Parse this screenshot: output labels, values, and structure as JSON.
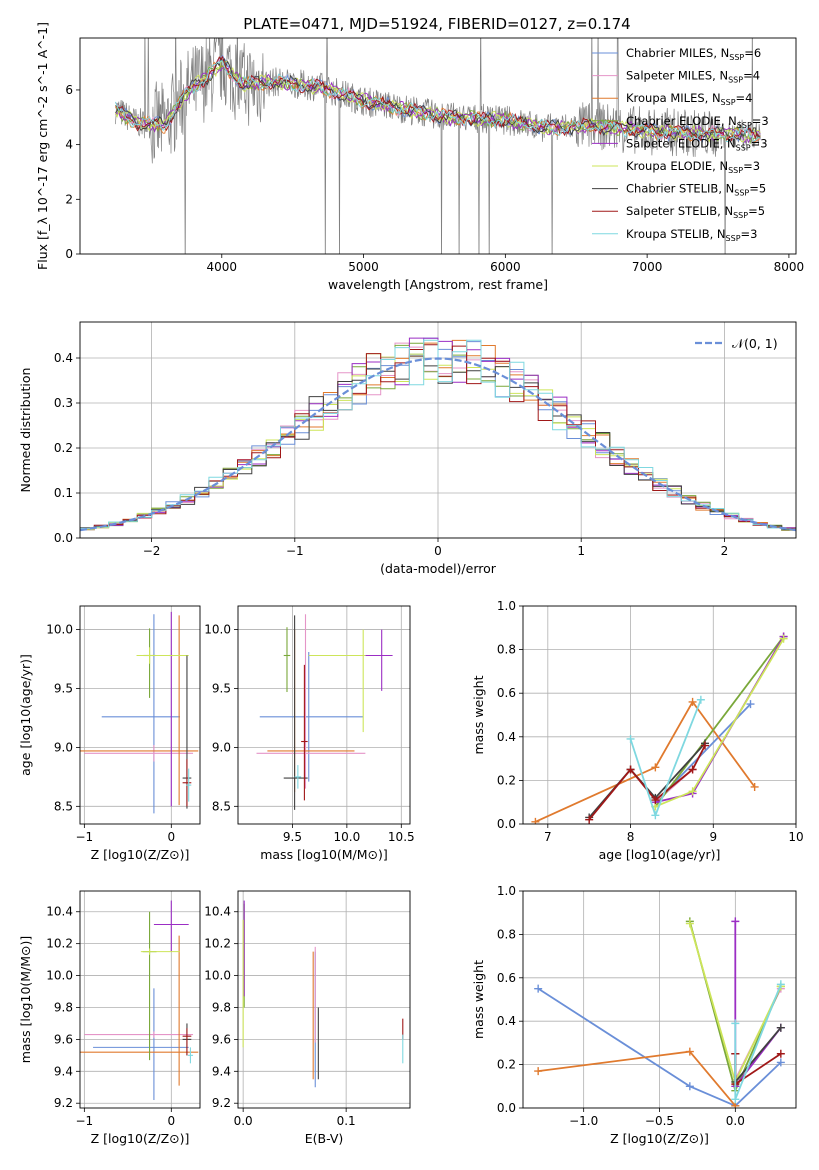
{
  "figure": {
    "title": "PLATE=0471, MJD=51924, FIBERID=0127, z=0.174"
  },
  "models": [
    {
      "name": "Chabrier MILES",
      "nssp": "6",
      "color": "#6a8fd8"
    },
    {
      "name": "Salpeter MILES",
      "nssp": "4",
      "color": "#e595c8"
    },
    {
      "name": "Kroupa MILES",
      "nssp": "4",
      "color": "#e07a2e"
    },
    {
      "name": "Chabrier ELODIE",
      "nssp": "3",
      "color": "#7aa83a"
    },
    {
      "name": "Salpeter ELODIE",
      "nssp": "3",
      "color": "#9b2ec4"
    },
    {
      "name": "Kroupa ELODIE",
      "nssp": "3",
      "color": "#cde55a"
    },
    {
      "name": "Chabrier STELIB",
      "nssp": "5",
      "color": "#404040"
    },
    {
      "name": "Salpeter STELIB",
      "nssp": "5",
      "color": "#a01818"
    },
    {
      "name": "Kroupa STELIB",
      "nssp": "3",
      "color": "#7fd8e0"
    }
  ],
  "chart_data": [
    {
      "id": "spectrum",
      "type": "line",
      "title": "PLATE=0471, MJD=51924, FIBERID=0127, z=0.174",
      "xlabel": "wavelength [Angstrom, rest frame]",
      "ylabel": "Flux [f_λ 10^-17 erg cm^-2 s^-1 A^-1]",
      "xlim": [
        3000,
        8050
      ],
      "ylim": [
        0,
        7.9
      ],
      "xticks": [
        "4000",
        "5000",
        "6000",
        "7000",
        "8000"
      ],
      "yticks": [
        "0",
        "2",
        "4",
        "6"
      ],
      "grid": false,
      "legend": "top-right",
      "observed_color": "#808080",
      "model_continuum": [
        {
          "x": 3250,
          "y": 5.3
        },
        {
          "x": 3400,
          "y": 4.8
        },
        {
          "x": 3600,
          "y": 4.7
        },
        {
          "x": 3750,
          "y": 5.9
        },
        {
          "x": 3900,
          "y": 6.5
        },
        {
          "x": 4000,
          "y": 7.0
        },
        {
          "x": 4150,
          "y": 6.2
        },
        {
          "x": 4400,
          "y": 6.3
        },
        {
          "x": 4700,
          "y": 6.1
        },
        {
          "x": 5000,
          "y": 5.6
        },
        {
          "x": 5300,
          "y": 5.3
        },
        {
          "x": 5600,
          "y": 5.0
        },
        {
          "x": 6000,
          "y": 4.9
        },
        {
          "x": 6300,
          "y": 4.6
        },
        {
          "x": 6600,
          "y": 4.7
        },
        {
          "x": 7000,
          "y": 4.5
        },
        {
          "x": 7400,
          "y": 4.4
        },
        {
          "x": 7800,
          "y": 4.35
        }
      ]
    },
    {
      "id": "residual_histogram",
      "type": "line",
      "xlabel": "(data-model)/error",
      "ylabel": "Normed distribution",
      "xlim": [
        -2.5,
        2.5
      ],
      "ylim": [
        0,
        0.48
      ],
      "xticks": [
        "−2",
        "−1",
        "0",
        "1",
        "2"
      ],
      "yticks": [
        "0.0",
        "0.1",
        "0.2",
        "0.3",
        "0.4"
      ],
      "grid": true,
      "legend": "top-right",
      "reference_label": "𝒩(0, 1)",
      "reference_color": "#6a8fd8"
    },
    {
      "id": "age_vs_z",
      "type": "scatter",
      "xlabel": "Z [log10(Z/Z⊙)]",
      "ylabel": "age [log10(age/yr)]",
      "xlim": [
        -1.05,
        0.33
      ],
      "ylim": [
        8.35,
        10.2
      ],
      "xticks": [
        "−1",
        "0"
      ],
      "yticks": [
        "8.5",
        "9.0",
        "9.5",
        "10.0"
      ],
      "grid": true,
      "points": [
        {
          "model": 0,
          "x": -0.2,
          "xerr": [
            0.6,
            0.3
          ],
          "y": 9.26,
          "yerr": [
            0.82,
            0.87
          ]
        },
        {
          "model": 1,
          "x": -0.2,
          "xerr": [
            0.8,
            0.45
          ],
          "y": 8.95,
          "yerr": [
            0.07,
            0.07
          ]
        },
        {
          "model": 2,
          "x": 0.09,
          "xerr": [
            1.2,
            0.22
          ],
          "y": 8.97,
          "yerr": [
            0.46,
            1.15
          ]
        },
        {
          "model": 3,
          "x": -0.25,
          "xerr": [
            0.07,
            0.07
          ],
          "y": 9.78,
          "yerr": [
            0.36,
            0.23
          ]
        },
        {
          "model": 4,
          "x": 0.0,
          "xerr": [
            0.02,
            0.02
          ],
          "y": 9.78,
          "yerr": [
            1.28,
            0.37
          ]
        },
        {
          "model": 5,
          "x": -0.25,
          "xerr": [
            0.15,
            0.45
          ],
          "y": 9.78,
          "yerr": [
            0.07,
            0.07
          ]
        },
        {
          "model": 6,
          "x": 0.18,
          "xerr": [
            0.05,
            0.05
          ],
          "y": 8.74,
          "yerr": [
            0.26,
            1.04
          ]
        },
        {
          "model": 7,
          "x": 0.18,
          "xerr": [
            0.05,
            0.05
          ],
          "y": 8.7,
          "yerr": [
            0.2,
            0.2
          ]
        },
        {
          "model": 8,
          "x": 0.2,
          "xerr": [
            0.03,
            0.03
          ],
          "y": 8.68,
          "yerr": [
            0.14,
            0.14
          ]
        }
      ]
    },
    {
      "id": "age_vs_mass",
      "type": "scatter",
      "xlabel": "mass [log10(M/M⊙)]",
      "ylabel": "",
      "xlim": [
        9.0,
        10.58
      ],
      "ylim": [
        8.35,
        10.2
      ],
      "xticks": [
        "9.5",
        "10.0",
        "10.5"
      ],
      "yticks": [
        "8.5",
        "9.0",
        "9.5",
        "10.0"
      ],
      "grid": true,
      "points": [
        {
          "model": 0,
          "x": 9.65,
          "xerr": [
            0.45,
            0.5
          ],
          "y": 9.26,
          "yerr": [
            0.55,
            0.55
          ]
        },
        {
          "model": 1,
          "x": 9.62,
          "xerr": [
            0.45,
            0.55
          ],
          "y": 8.95,
          "yerr": [
            0.3,
            1.18
          ]
        },
        {
          "model": 2,
          "x": 9.52,
          "xerr": [
            0.25,
            0.55
          ],
          "y": 8.97,
          "yerr": [
            0.35,
            1.03
          ]
        },
        {
          "model": 3,
          "x": 9.45,
          "xerr": [
            0.03,
            0.03
          ],
          "y": 9.78,
          "yerr": [
            0.31,
            0.24
          ]
        },
        {
          "model": 4,
          "x": 10.32,
          "xerr": [
            0.15,
            0.1
          ],
          "y": 9.78,
          "yerr": [
            0.3,
            0.22
          ]
        },
        {
          "model": 5,
          "x": 10.15,
          "xerr": [
            0.5,
            0.02
          ],
          "y": 9.78,
          "yerr": [
            0.65,
            0.22
          ]
        },
        {
          "model": 6,
          "x": 9.52,
          "xerr": [
            0.1,
            0.12
          ],
          "y": 8.74,
          "yerr": [
            0.27,
            1.38
          ]
        },
        {
          "model": 7,
          "x": 9.61,
          "xerr": [
            0.03,
            0.03
          ],
          "y": 9.05,
          "yerr": [
            0.5,
            0.65
          ]
        },
        {
          "model": 8,
          "x": 9.55,
          "xerr": [
            0.03,
            0.03
          ],
          "y": 8.75,
          "yerr": [
            0.1,
            0.1
          ]
        }
      ]
    },
    {
      "id": "mass_weight_vs_age",
      "type": "line",
      "xlabel": "age [log10(age/yr)]",
      "ylabel": "mass weight",
      "xlim": [
        6.7,
        10.0
      ],
      "ylim": [
        0,
        1.0
      ],
      "xticks": [
        "7",
        "8",
        "9",
        "10"
      ],
      "yticks": [
        "0.0",
        "0.2",
        "0.4",
        "0.6",
        "0.8",
        "1.0"
      ],
      "grid": true,
      "series": [
        {
          "model": 0,
          "x": [
            8.3,
            9.45
          ],
          "y": [
            0.1,
            0.55
          ]
        },
        {
          "model": 1,
          "x": [
            8.3,
            8.75
          ],
          "y": [
            0.1,
            0.25
          ]
        },
        {
          "model": 2,
          "x": [
            6.85,
            8.3,
            8.75,
            9.5
          ],
          "y": [
            0.01,
            0.26,
            0.56,
            0.17
          ]
        },
        {
          "model": 3,
          "x": [
            8.3,
            9.85
          ],
          "y": [
            0.08,
            0.86
          ]
        },
        {
          "model": 4,
          "x": [
            8.3,
            8.75,
            9.85
          ],
          "y": [
            0.1,
            0.14,
            0.86
          ]
        },
        {
          "model": 5,
          "x": [
            8.3,
            8.75,
            9.85
          ],
          "y": [
            0.08,
            0.15,
            0.85
          ]
        },
        {
          "model": 6,
          "x": [
            7.5,
            8.0,
            8.3,
            8.9
          ],
          "y": [
            0.03,
            0.25,
            0.12,
            0.37
          ]
        },
        {
          "model": 7,
          "x": [
            7.5,
            8.0,
            8.3,
            8.75,
            8.9
          ],
          "y": [
            0.02,
            0.25,
            0.11,
            0.25,
            0.36
          ]
        },
        {
          "model": 8,
          "x": [
            8.0,
            8.3,
            8.85
          ],
          "y": [
            0.39,
            0.04,
            0.57
          ]
        }
      ]
    },
    {
      "id": "mass_vs_z",
      "type": "scatter",
      "xlabel": "Z [log10(Z/Z⊙)]",
      "ylabel": "mass [log10(M/M⊙)]",
      "xlim": [
        -1.05,
        0.33
      ],
      "ylim": [
        9.17,
        10.53
      ],
      "xticks": [
        "−1",
        "0"
      ],
      "yticks": [
        "9.2",
        "9.4",
        "9.6",
        "9.8",
        "10.0",
        "10.2",
        "10.4"
      ],
      "grid": true,
      "points": [
        {
          "model": 0,
          "x": -0.2,
          "xerr": [
            0.7,
            0.4
          ],
          "y": 9.55,
          "yerr": [
            0.33,
            0.37
          ]
        },
        {
          "model": 1,
          "x": -0.2,
          "xerr": [
            0.8,
            0.45
          ],
          "y": 9.63,
          "yerr": [
            0.02,
            0.02
          ]
        },
        {
          "model": 2,
          "x": 0.09,
          "xerr": [
            1.2,
            0.22
          ],
          "y": 9.52,
          "yerr": [
            0.21,
            0.73
          ]
        },
        {
          "model": 3,
          "x": -0.25,
          "xerr": [
            0.08,
            0.08
          ],
          "y": 10.15,
          "yerr": [
            0.68,
            0.25
          ]
        },
        {
          "model": 4,
          "x": 0.0,
          "xerr": [
            0.2,
            0.2
          ],
          "y": 10.32,
          "yerr": [
            0.17,
            0.15
          ]
        },
        {
          "model": 5,
          "x": -0.25,
          "xerr": [
            0.1,
            0.35
          ],
          "y": 10.15,
          "yerr": [
            0.02,
            0.02
          ]
        },
        {
          "model": 6,
          "x": 0.18,
          "xerr": [
            0.05,
            0.05
          ],
          "y": 9.6,
          "yerr": [
            0.1,
            0.1
          ]
        },
        {
          "model": 7,
          "x": 0.18,
          "xerr": [
            0.05,
            0.05
          ],
          "y": 9.62,
          "yerr": [
            0.12,
            0.05
          ]
        },
        {
          "model": 8,
          "x": 0.22,
          "xerr": [
            0.03,
            0.03
          ],
          "y": 9.5,
          "yerr": [
            0.05,
            0.05
          ]
        }
      ]
    },
    {
      "id": "mass_vs_ebv",
      "type": "scatter",
      "xlabel": "E(B-V)",
      "ylabel": "",
      "xlim": [
        -0.005,
        0.162
      ],
      "ylim": [
        9.17,
        10.53
      ],
      "xticks": [
        "0.0",
        "0.1"
      ],
      "yticks": [
        "9.2",
        "9.4",
        "9.6",
        "9.8",
        "10.0",
        "10.2",
        "10.4"
      ],
      "grid": true,
      "points": [
        {
          "model": 0,
          "x": 0.07,
          "xerr": [
            0,
            0
          ],
          "y": 9.55,
          "yerr": [
            0.25,
            0.6
          ]
        },
        {
          "model": 1,
          "x": 0.07,
          "xerr": [
            0,
            0
          ],
          "y": 9.63,
          "yerr": [
            0.05,
            0.55
          ]
        },
        {
          "model": 2,
          "x": 0.068,
          "xerr": [
            0,
            0
          ],
          "y": 9.6,
          "yerr": [
            0.25,
            0.55
          ]
        },
        {
          "model": 3,
          "x": 0.001,
          "xerr": [
            0,
            0
          ],
          "y": 10.15,
          "yerr": [
            0.35,
            0.3
          ]
        },
        {
          "model": 4,
          "x": 0.001,
          "xerr": [
            0,
            0
          ],
          "y": 10.32,
          "yerr": [
            0.45,
            0.15
          ]
        },
        {
          "model": 5,
          "x": 0.0,
          "xerr": [
            0,
            0
          ],
          "y": 10.15,
          "yerr": [
            0.6,
            0.2
          ]
        },
        {
          "model": 6,
          "x": 0.073,
          "xerr": [
            0,
            0
          ],
          "y": 9.55,
          "yerr": [
            0.2,
            0.25
          ]
        },
        {
          "model": 7,
          "x": 0.155,
          "xerr": [
            0,
            0
          ],
          "y": 9.65,
          "yerr": [
            0.05,
            0.08
          ]
        },
        {
          "model": 8,
          "x": 0.155,
          "xerr": [
            0,
            0
          ],
          "y": 9.55,
          "yerr": [
            0.1,
            0.08
          ]
        }
      ]
    },
    {
      "id": "mass_weight_vs_z",
      "type": "line",
      "xlabel": "Z [log10(Z/Z⊙)]",
      "ylabel": "mass weight",
      "xlim": [
        -1.4,
        0.4
      ],
      "ylim": [
        0,
        1.0
      ],
      "xticks": [
        "−1.0",
        "−0.5",
        "0.0"
      ],
      "yticks": [
        "0.0",
        "0.2",
        "0.4",
        "0.6",
        "0.8",
        "1.0"
      ],
      "grid": true,
      "series": [
        {
          "model": 0,
          "x": [
            -1.3,
            -0.3,
            0.0,
            0.3
          ],
          "y": [
            0.55,
            0.1,
            0.01,
            0.21
          ]
        },
        {
          "model": 1,
          "x": [
            0.0,
            0.3
          ],
          "y": [
            0.13,
            0.55
          ]
        },
        {
          "model": 2,
          "x": [
            -1.3,
            -0.3,
            0.0
          ],
          "y": [
            0.17,
            0.26,
            0.01
          ]
        },
        {
          "model": 3,
          "x": [
            -0.3,
            0.0,
            0.3
          ],
          "y": [
            0.86,
            0.08,
            0.56
          ]
        },
        {
          "model": 4,
          "x": [
            0.0,
            0.0,
            0.3
          ],
          "y": [
            0.86,
            0.1,
            0.37
          ]
        },
        {
          "model": 5,
          "x": [
            -0.3,
            0.0,
            0.3
          ],
          "y": [
            0.85,
            0.12,
            0.56
          ]
        },
        {
          "model": 6,
          "x": [
            0.0,
            0.0,
            0.3
          ],
          "y": [
            0.25,
            0.12,
            0.37
          ]
        },
        {
          "model": 7,
          "x": [
            0.0,
            0.0,
            0.3
          ],
          "y": [
            0.25,
            0.11,
            0.25
          ]
        },
        {
          "model": 8,
          "x": [
            0.0,
            0.0,
            0.3
          ],
          "y": [
            0.39,
            0.04,
            0.57
          ]
        }
      ]
    }
  ]
}
